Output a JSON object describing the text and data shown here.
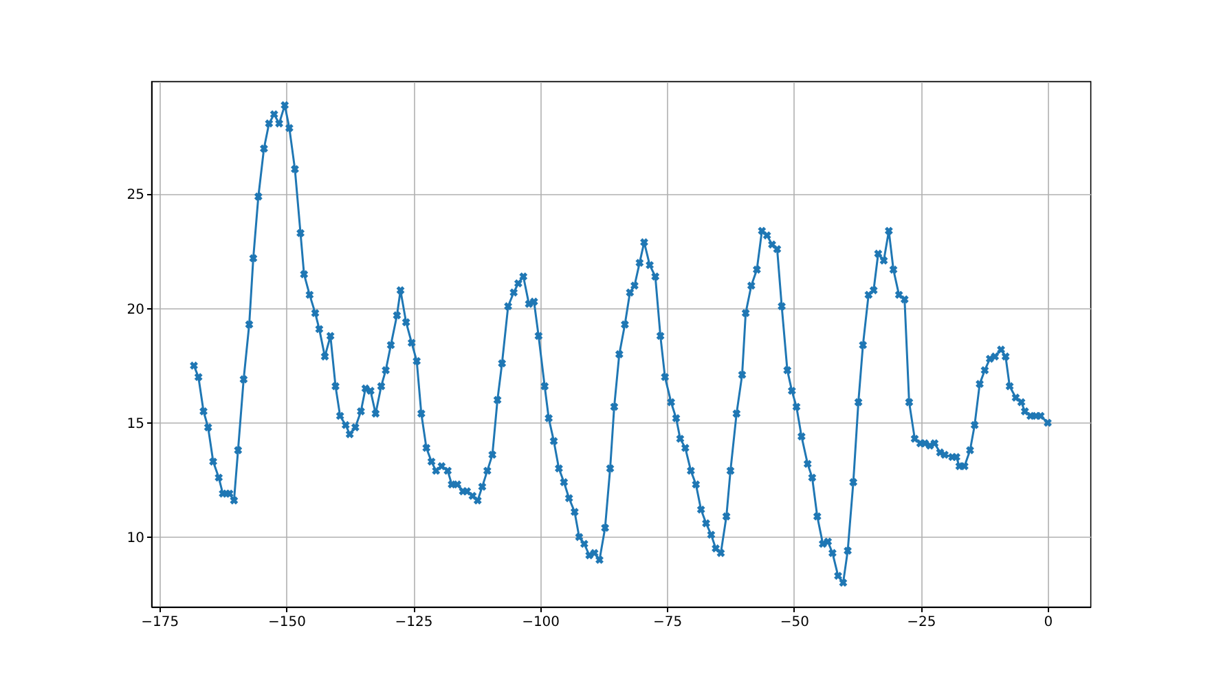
{
  "chart_data": {
    "type": "line",
    "xlim": [
      -176.6,
      8.4
    ],
    "ylim": [
      6.95,
      29.95
    ],
    "xticks": [
      -175,
      -150,
      -125,
      -100,
      -75,
      -50,
      -25,
      0
    ],
    "yticks": [
      10,
      15,
      20,
      25
    ],
    "grid": true,
    "marker": "cross",
    "line_style": "solid",
    "series": [
      {
        "color": "#1f77b4",
        "x": [
          -168.2,
          -167.3,
          -166.3,
          -165.4,
          -164.4,
          -163.3,
          -162.5,
          -161.8,
          -161.2,
          -160.3,
          -159.5,
          -158.4,
          -157.3,
          -156.5,
          -155.5,
          -154.4,
          -153.4,
          -152.4,
          -151.4,
          -150.3,
          -149.4,
          -148.3,
          -147.2,
          -146.5,
          -145.4,
          -144.3,
          -143.5,
          -142.4,
          -141.3,
          -140.3,
          -139.4,
          -138.3,
          -137.5,
          -136.4,
          -135.3,
          -134.4,
          -133.4,
          -132.4,
          -131.3,
          -130.4,
          -129.4,
          -128.2,
          -127.5,
          -126.4,
          -125.3,
          -124.3,
          -123.4,
          -122.4,
          -121.4,
          -120.5,
          -119.4,
          -118.2,
          -117.4,
          -116.3,
          -115.2,
          -114.4,
          -113.3,
          -112.3,
          -111.4,
          -110.4,
          -109.4,
          -108.4,
          -107.5,
          -106.3,
          -105.2,
          -104.3,
          -103.3,
          -102.2,
          -101.2,
          -100.3,
          -99.1,
          -98.3,
          -97.3,
          -96.3,
          -95.3,
          -94.3,
          -93.2,
          -92.3,
          -91.3,
          -90.3,
          -89.3,
          -88.3,
          -87.2,
          -86.2,
          -85.4,
          -84.4,
          -83.3,
          -82.3,
          -81.4,
          -80.4,
          -79.5,
          -78.4,
          -77.3,
          -76.3,
          -75.4,
          -74.2,
          -73.2,
          -72.4,
          -71.4,
          -70.3,
          -69.3,
          -68.3,
          -67.3,
          -66.3,
          -65.4,
          -64.4,
          -63.3,
          -62.5,
          -61.3,
          -60.2,
          -59.5,
          -58.4,
          -57.3,
          -56.3,
          -55.3,
          -54.3,
          -53.3,
          -52.4,
          -51.3,
          -50.4,
          -49.5,
          -48.5,
          -47.3,
          -46.4,
          -45.4,
          -44.3,
          -43.3,
          -42.4,
          -41.3,
          -40.3,
          -39.4,
          -38.3,
          -37.3,
          -36.4,
          -35.3,
          -34.3,
          -33.4,
          -32.3,
          -31.3,
          -30.4,
          -29.3,
          -28.2,
          -27.3,
          -26.2,
          -25.1,
          -24.2,
          -23.2,
          -22.3,
          -21.2,
          -20.3,
          -18.8,
          -18.0,
          -17.4,
          -16.4,
          -15.3,
          -14.4,
          -13.4,
          -12.4,
          -11.4,
          -10.4,
          -9.2,
          -8.3,
          -7.5,
          -6.3,
          -5.2,
          -4.5,
          -3.4,
          -2.3,
          -1.4,
          0
        ],
        "values": [
          17.5,
          17.0,
          15.5,
          14.8,
          13.3,
          12.6,
          11.9,
          11.9,
          11.9,
          11.6,
          13.8,
          16.9,
          19.3,
          22.2,
          24.9,
          27.0,
          28.1,
          28.5,
          28.1,
          28.9,
          27.9,
          26.1,
          23.3,
          21.5,
          20.6,
          19.8,
          19.1,
          17.9,
          18.8,
          16.6,
          15.3,
          14.9,
          14.5,
          14.8,
          15.5,
          16.5,
          16.4,
          15.4,
          16.6,
          17.3,
          18.4,
          19.7,
          20.8,
          19.4,
          18.5,
          17.7,
          15.4,
          13.9,
          13.3,
          12.9,
          13.1,
          12.9,
          12.3,
          12.3,
          12.0,
          12.0,
          11.8,
          11.6,
          12.2,
          12.9,
          13.6,
          16.0,
          17.6,
          20.1,
          20.7,
          21.1,
          21.4,
          20.2,
          20.3,
          18.8,
          16.6,
          15.2,
          14.2,
          13.0,
          12.4,
          11.7,
          11.1,
          10.0,
          9.7,
          9.2,
          9.3,
          9.0,
          10.4,
          13.0,
          15.7,
          18.0,
          19.3,
          20.7,
          21.0,
          22.0,
          22.9,
          21.9,
          21.4,
          18.8,
          17.0,
          15.9,
          15.2,
          14.3,
          13.9,
          12.9,
          12.3,
          11.2,
          10.6,
          10.1,
          9.5,
          9.3,
          10.9,
          12.9,
          15.4,
          17.1,
          19.8,
          21.0,
          21.7,
          23.4,
          23.2,
          22.8,
          22.6,
          20.1,
          17.3,
          16.4,
          15.7,
          14.4,
          13.2,
          12.6,
          10.9,
          9.7,
          9.8,
          9.3,
          8.3,
          8.0,
          9.4,
          12.4,
          15.9,
          18.4,
          20.6,
          20.8,
          22.4,
          22.1,
          23.4,
          21.7,
          20.6,
          20.4,
          15.9,
          14.3,
          14.1,
          14.1,
          14.0,
          14.1,
          13.7,
          13.6,
          13.5,
          13.5,
          13.1,
          13.1,
          13.8,
          14.9,
          16.7,
          17.3,
          17.8,
          17.9,
          18.2,
          17.9,
          16.6,
          16.1,
          15.9,
          15.5,
          15.3,
          15.3,
          15.3,
          15.0
        ]
      }
    ]
  }
}
